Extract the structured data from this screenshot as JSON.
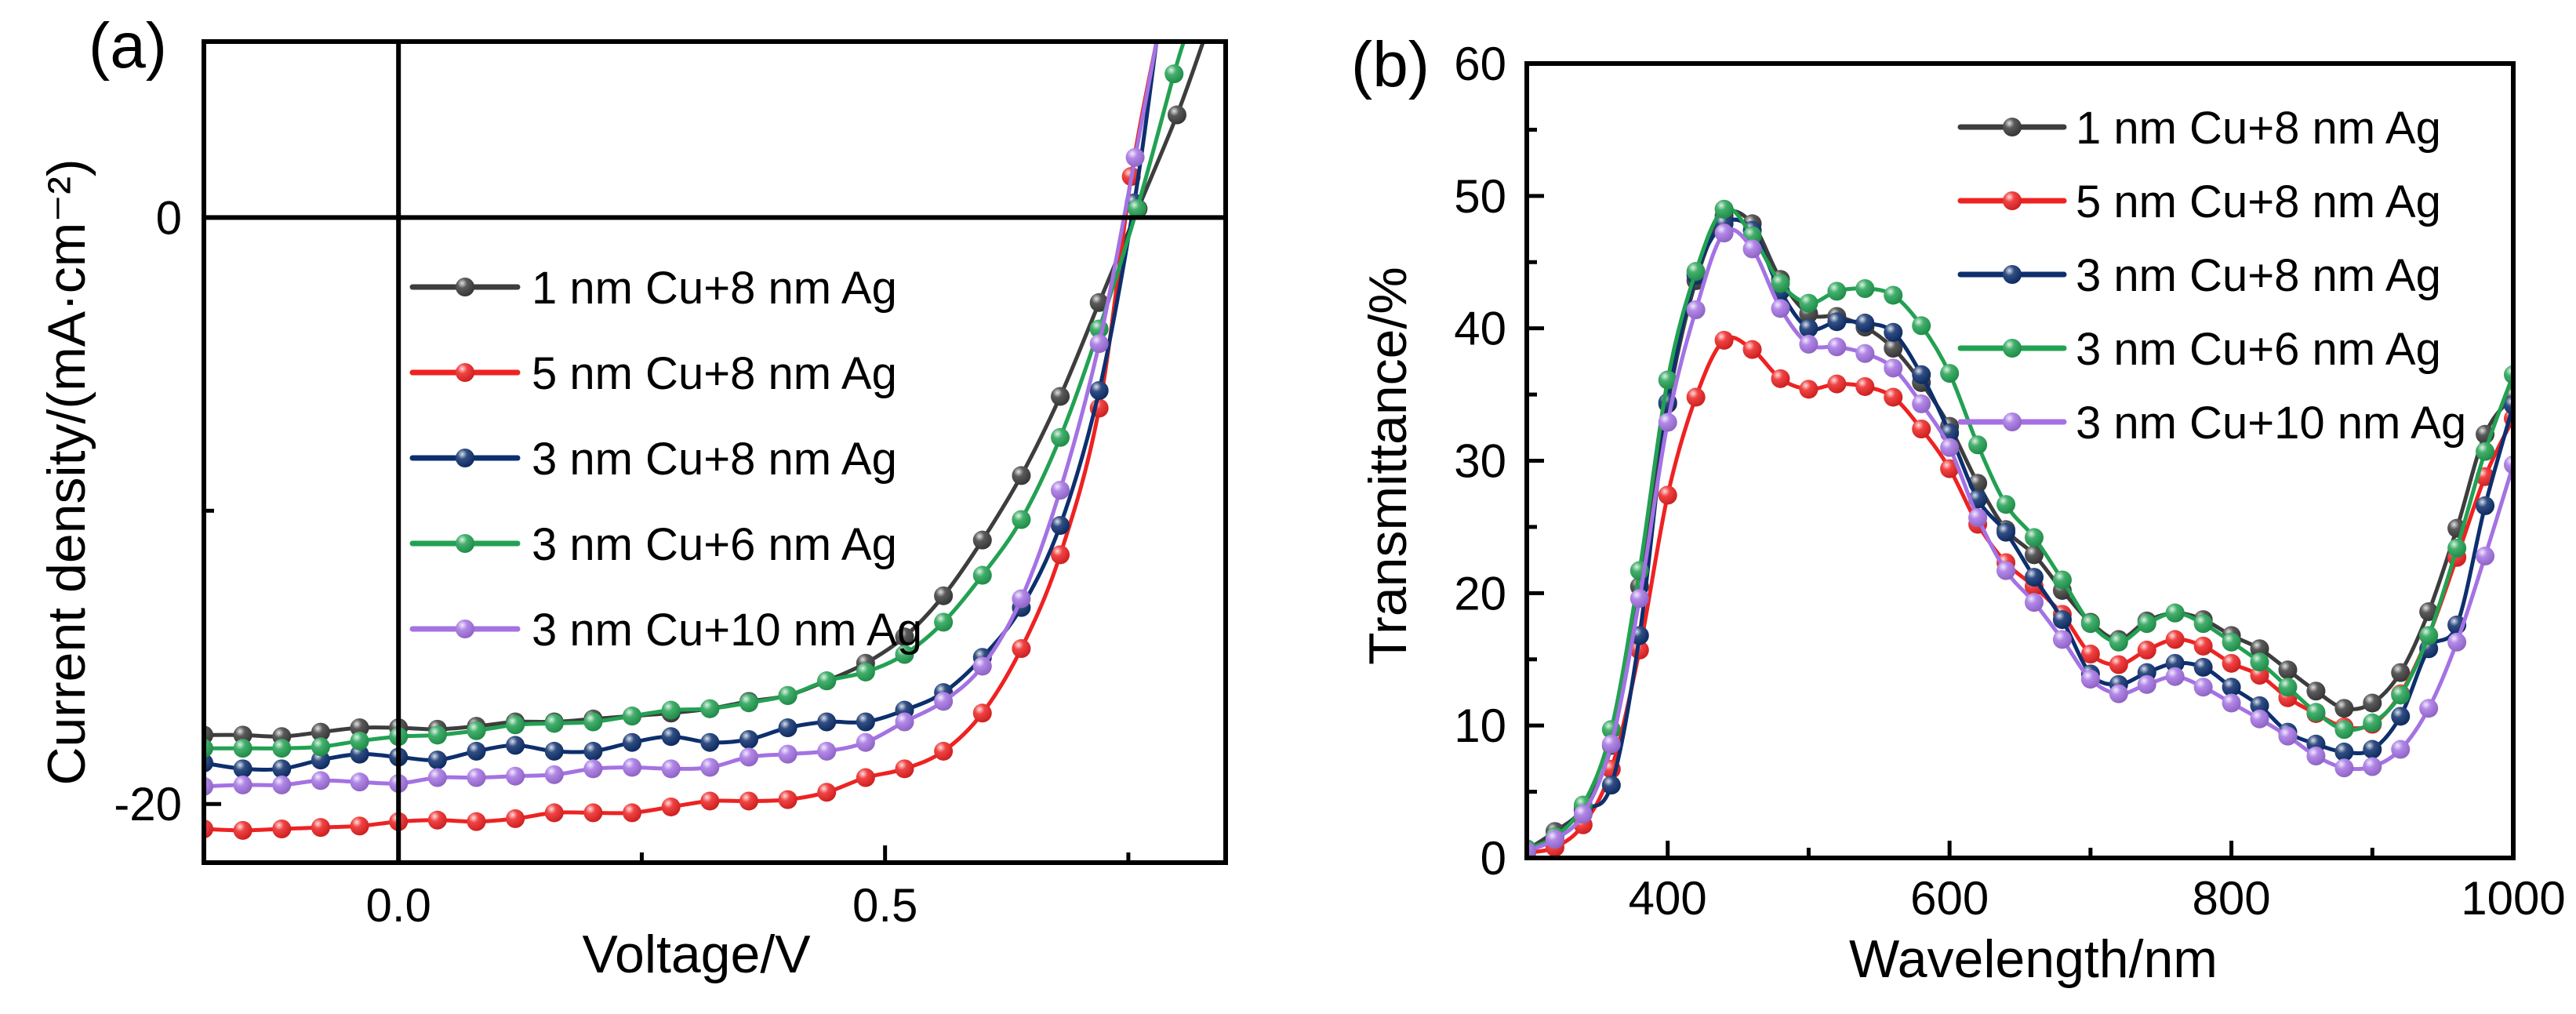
{
  "figure": {
    "panels": [
      "(a)",
      "(b)"
    ]
  },
  "legend": {
    "entries": [
      {
        "label": "1 nm Cu+8 nm Ag",
        "color": "#3d3d3d"
      },
      {
        "label": "5 nm Cu+8 nm Ag",
        "color": "#ee2222"
      },
      {
        "label": "3 nm Cu+8 nm Ag",
        "color": "#0d2f6e"
      },
      {
        "label": "3 nm Cu+6 nm Ag",
        "color": "#22a152"
      },
      {
        "label": "3 nm Cu+10 nm Ag",
        "color": "#a472e3"
      }
    ]
  },
  "chart_data": [
    {
      "panel": "(a)",
      "type": "line",
      "title": "",
      "xlabel": "Voltage/V",
      "ylabel": "Current density/(mA·cm⁻²)",
      "xlim": [
        -0.2,
        0.85
      ],
      "ylim": [
        -22,
        6
      ],
      "xticks": [
        0.0,
        0.5
      ],
      "xtick_labels": [
        "0.0",
        "0.5"
      ],
      "xminor_ticks": [
        0.25,
        0.75
      ],
      "yticks": [
        0,
        -20
      ],
      "ytick_labels": [
        "0",
        "-20"
      ],
      "yminor_ticks": [
        -10
      ],
      "zero_lines": {
        "x": 0,
        "y": 0
      },
      "grid": false,
      "legend_position": "center",
      "series": [
        {
          "name": "1 nm Cu+8 nm Ag",
          "color": "#3d3d3d",
          "x": [
            -0.2,
            -0.16,
            -0.12,
            -0.08,
            -0.04,
            0.0,
            0.04,
            0.08,
            0.12,
            0.16,
            0.2,
            0.24,
            0.28,
            0.32,
            0.36,
            0.4,
            0.44,
            0.48,
            0.52,
            0.56,
            0.6,
            0.64,
            0.68,
            0.72,
            0.76,
            0.8,
            0.827
          ],
          "y": [
            -17.65,
            -17.65,
            -17.7,
            -17.55,
            -17.4,
            -17.4,
            -17.45,
            -17.35,
            -17.2,
            -17.2,
            -17.1,
            -17.0,
            -16.9,
            -16.75,
            -16.5,
            -16.3,
            -15.8,
            -15.2,
            -14.3,
            -12.9,
            -11.0,
            -8.8,
            -6.1,
            -2.9,
            0.3,
            3.5,
            6.0
          ]
        },
        {
          "name": "5 nm Cu+8 nm Ag",
          "color": "#ee2222",
          "x": [
            -0.2,
            -0.16,
            -0.12,
            -0.08,
            -0.04,
            0.0,
            0.04,
            0.08,
            0.12,
            0.16,
            0.2,
            0.24,
            0.28,
            0.32,
            0.36,
            0.4,
            0.44,
            0.48,
            0.52,
            0.56,
            0.6,
            0.64,
            0.68,
            0.72,
            0.753,
            0.779
          ],
          "y": [
            -20.85,
            -20.9,
            -20.85,
            -20.8,
            -20.75,
            -20.6,
            -20.55,
            -20.6,
            -20.5,
            -20.3,
            -20.3,
            -20.3,
            -20.1,
            -19.9,
            -19.9,
            -19.85,
            -19.6,
            -19.1,
            -18.8,
            -18.2,
            -16.9,
            -14.7,
            -11.5,
            -6.5,
            1.4,
            6.0
          ]
        },
        {
          "name": "3 nm Cu+8 nm Ag",
          "color": "#0d2f6e",
          "x": [
            -0.2,
            -0.16,
            -0.12,
            -0.08,
            -0.04,
            0.0,
            0.04,
            0.08,
            0.12,
            0.16,
            0.2,
            0.24,
            0.28,
            0.32,
            0.36,
            0.4,
            0.44,
            0.48,
            0.52,
            0.56,
            0.6,
            0.64,
            0.68,
            0.72,
            0.756,
            0.779
          ],
          "y": [
            -18.6,
            -18.8,
            -18.8,
            -18.5,
            -18.3,
            -18.4,
            -18.5,
            -18.2,
            -18.0,
            -18.2,
            -18.2,
            -17.9,
            -17.7,
            -17.9,
            -17.8,
            -17.4,
            -17.2,
            -17.2,
            -16.8,
            -16.2,
            -15.0,
            -13.3,
            -10.5,
            -5.9,
            0.5,
            6.0
          ]
        },
        {
          "name": "3 nm Cu+6 nm Ag",
          "color": "#22a152",
          "x": [
            -0.2,
            -0.16,
            -0.12,
            -0.08,
            -0.04,
            0.0,
            0.04,
            0.08,
            0.12,
            0.16,
            0.2,
            0.24,
            0.28,
            0.32,
            0.36,
            0.4,
            0.44,
            0.48,
            0.52,
            0.56,
            0.6,
            0.64,
            0.68,
            0.72,
            0.759,
            0.797,
            0.807
          ],
          "y": [
            -18.1,
            -18.1,
            -18.1,
            -18.05,
            -17.85,
            -17.7,
            -17.65,
            -17.5,
            -17.3,
            -17.25,
            -17.2,
            -17.0,
            -16.8,
            -16.75,
            -16.55,
            -16.3,
            -15.8,
            -15.5,
            -14.9,
            -13.8,
            -12.2,
            -10.3,
            -7.5,
            -3.8,
            0.3,
            4.9,
            6.0
          ]
        },
        {
          "name": "3 nm Cu+10 nm Ag",
          "color": "#a472e3",
          "x": [
            -0.2,
            -0.16,
            -0.12,
            -0.08,
            -0.04,
            0.0,
            0.04,
            0.08,
            0.12,
            0.16,
            0.2,
            0.24,
            0.28,
            0.32,
            0.36,
            0.4,
            0.44,
            0.48,
            0.52,
            0.56,
            0.6,
            0.64,
            0.68,
            0.72,
            0.757,
            0.779
          ],
          "y": [
            -19.4,
            -19.35,
            -19.35,
            -19.2,
            -19.25,
            -19.3,
            -19.1,
            -19.1,
            -19.05,
            -19.0,
            -18.8,
            -18.75,
            -18.8,
            -18.75,
            -18.4,
            -18.3,
            -18.2,
            -17.9,
            -17.2,
            -16.5,
            -15.3,
            -13.0,
            -9.3,
            -4.3,
            2.05,
            6.0
          ]
        }
      ]
    },
    {
      "panel": "(b)",
      "type": "line",
      "title": "",
      "xlabel": "Wavelength/nm",
      "ylabel": "Transmittance/%",
      "xlim": [
        300,
        1000
      ],
      "ylim": [
        0,
        60
      ],
      "xticks": [
        400,
        600,
        800,
        1000
      ],
      "xtick_labels": [
        "400",
        "600",
        "800",
        "1000"
      ],
      "xminor_ticks": [
        500,
        700,
        900
      ],
      "yticks": [
        0,
        10,
        20,
        30,
        40,
        50,
        60
      ],
      "ytick_labels": [
        "0",
        "10",
        "20",
        "30",
        "40",
        "50",
        "60"
      ],
      "yminor_ticks": [
        5,
        15,
        25,
        35,
        45,
        55
      ],
      "grid": false,
      "legend_position": "top-right",
      "x": [
        300,
        320,
        340,
        360,
        380,
        400,
        420,
        440,
        460,
        480,
        500,
        520,
        540,
        560,
        580,
        600,
        620,
        640,
        660,
        680,
        700,
        720,
        740,
        760,
        780,
        800,
        820,
        840,
        860,
        880,
        900,
        920,
        940,
        960,
        980,
        1000
      ],
      "series": [
        {
          "name": "1 nm Cu+8 nm Ag",
          "color": "#3d3d3d",
          "values": [
            0.6,
            2.0,
            3.8,
            8.5,
            20.5,
            34.3,
            43.6,
            48.5,
            47.9,
            43.7,
            41.1,
            40.9,
            40.1,
            38.5,
            35.9,
            32.6,
            28.3,
            24.8,
            22.9,
            20.2,
            17.8,
            16.5,
            17.9,
            18.5,
            18.0,
            16.8,
            15.8,
            14.2,
            12.6,
            11.3,
            11.7,
            14.0,
            18.6,
            24.9,
            32.0,
            34.9
          ]
        },
        {
          "name": "5 nm Cu+8 nm Ag",
          "color": "#ee2222",
          "values": [
            0.4,
            0.8,
            2.5,
            6.7,
            15.7,
            27.4,
            34.8,
            39.1,
            38.4,
            36.2,
            35.4,
            35.8,
            35.6,
            34.8,
            32.4,
            29.4,
            25.2,
            22.3,
            20.5,
            18.4,
            15.4,
            14.6,
            15.7,
            16.5,
            16.0,
            14.7,
            13.8,
            12.1,
            10.9,
            9.9,
            10.1,
            12.4,
            16.8,
            22.7,
            28.8,
            33.2
          ]
        },
        {
          "name": "3 nm Cu+8 nm Ag",
          "color": "#0d2f6e",
          "values": [
            0.5,
            1.6,
            3.6,
            5.5,
            16.8,
            34.4,
            44.0,
            47.9,
            47.4,
            42.8,
            40.0,
            40.5,
            40.4,
            39.7,
            36.5,
            32.1,
            27.1,
            24.6,
            21.2,
            18.0,
            13.9,
            13.1,
            14.0,
            14.7,
            14.4,
            12.9,
            11.5,
            9.5,
            8.6,
            8.0,
            8.2,
            10.7,
            15.8,
            17.6,
            26.6,
            34.2
          ]
        },
        {
          "name": "3 nm Cu+6 nm Ag",
          "color": "#22a152",
          "values": [
            0.7,
            1.6,
            4.0,
            9.7,
            21.7,
            36.1,
            44.3,
            49.0,
            47.0,
            43.4,
            41.9,
            42.8,
            43.0,
            42.5,
            40.2,
            36.6,
            31.2,
            26.7,
            24.2,
            21.0,
            17.7,
            16.3,
            17.7,
            18.5,
            17.7,
            16.3,
            14.8,
            12.9,
            11.0,
            9.7,
            10.2,
            12.3,
            16.8,
            23.4,
            30.7,
            36.5
          ]
        },
        {
          "name": "3 nm Cu+10 nm Ag",
          "color": "#a472e3",
          "values": [
            0.5,
            1.4,
            3.3,
            8.6,
            19.6,
            32.9,
            41.4,
            47.2,
            46.0,
            41.5,
            38.8,
            38.6,
            38.1,
            37.0,
            34.3,
            31.0,
            25.7,
            21.7,
            19.3,
            16.5,
            13.5,
            12.4,
            13.1,
            13.7,
            12.9,
            11.7,
            10.5,
            9.2,
            7.7,
            6.8,
            6.9,
            8.2,
            11.3,
            16.3,
            22.8,
            29.7
          ]
        }
      ]
    }
  ]
}
